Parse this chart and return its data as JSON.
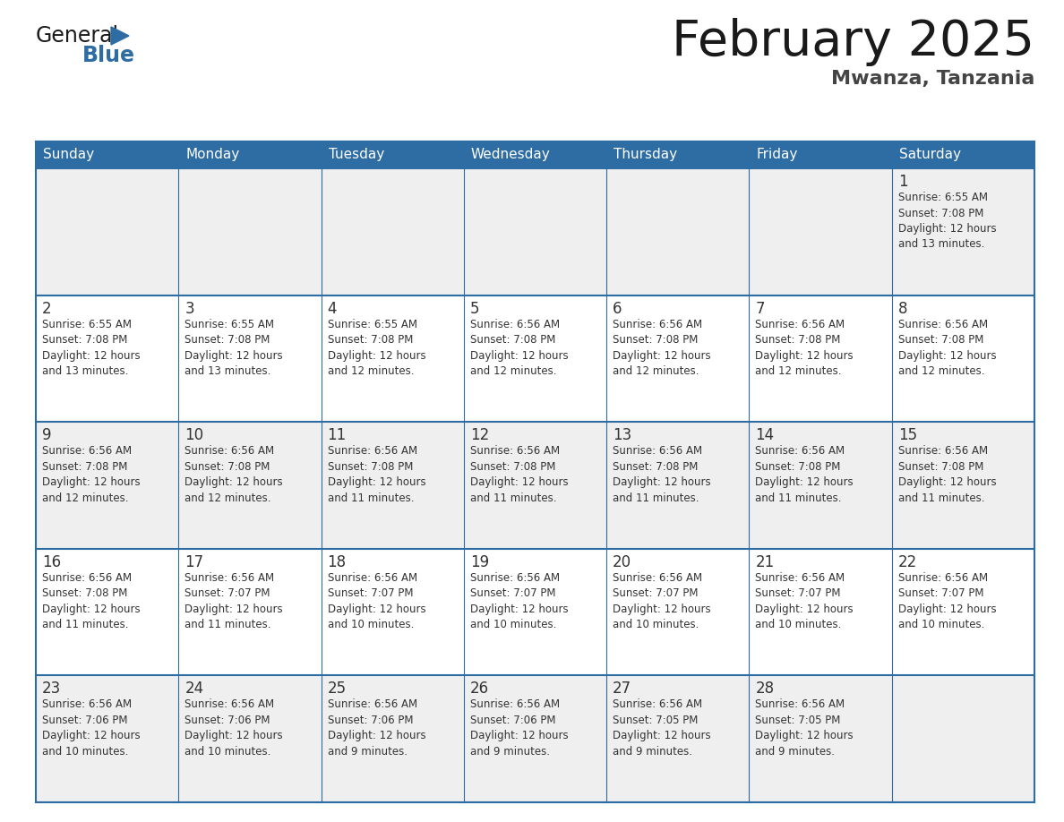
{
  "title": "February 2025",
  "subtitle": "Mwanza, Tanzania",
  "header_bg": "#2E6DA4",
  "header_text_color": "#FFFFFF",
  "cell_bg_odd": "#EFEFEF",
  "cell_bg_even": "#FFFFFF",
  "border_color": "#2E6DA4",
  "text_color": "#333333",
  "days_of_week": [
    "Sunday",
    "Monday",
    "Tuesday",
    "Wednesday",
    "Thursday",
    "Friday",
    "Saturday"
  ],
  "calendar": [
    [
      {
        "day": null,
        "info": null
      },
      {
        "day": null,
        "info": null
      },
      {
        "day": null,
        "info": null
      },
      {
        "day": null,
        "info": null
      },
      {
        "day": null,
        "info": null
      },
      {
        "day": null,
        "info": null
      },
      {
        "day": "1",
        "info": "Sunrise: 6:55 AM\nSunset: 7:08 PM\nDaylight: 12 hours\nand 13 minutes."
      }
    ],
    [
      {
        "day": "2",
        "info": "Sunrise: 6:55 AM\nSunset: 7:08 PM\nDaylight: 12 hours\nand 13 minutes."
      },
      {
        "day": "3",
        "info": "Sunrise: 6:55 AM\nSunset: 7:08 PM\nDaylight: 12 hours\nand 13 minutes."
      },
      {
        "day": "4",
        "info": "Sunrise: 6:55 AM\nSunset: 7:08 PM\nDaylight: 12 hours\nand 12 minutes."
      },
      {
        "day": "5",
        "info": "Sunrise: 6:56 AM\nSunset: 7:08 PM\nDaylight: 12 hours\nand 12 minutes."
      },
      {
        "day": "6",
        "info": "Sunrise: 6:56 AM\nSunset: 7:08 PM\nDaylight: 12 hours\nand 12 minutes."
      },
      {
        "day": "7",
        "info": "Sunrise: 6:56 AM\nSunset: 7:08 PM\nDaylight: 12 hours\nand 12 minutes."
      },
      {
        "day": "8",
        "info": "Sunrise: 6:56 AM\nSunset: 7:08 PM\nDaylight: 12 hours\nand 12 minutes."
      }
    ],
    [
      {
        "day": "9",
        "info": "Sunrise: 6:56 AM\nSunset: 7:08 PM\nDaylight: 12 hours\nand 12 minutes."
      },
      {
        "day": "10",
        "info": "Sunrise: 6:56 AM\nSunset: 7:08 PM\nDaylight: 12 hours\nand 12 minutes."
      },
      {
        "day": "11",
        "info": "Sunrise: 6:56 AM\nSunset: 7:08 PM\nDaylight: 12 hours\nand 11 minutes."
      },
      {
        "day": "12",
        "info": "Sunrise: 6:56 AM\nSunset: 7:08 PM\nDaylight: 12 hours\nand 11 minutes."
      },
      {
        "day": "13",
        "info": "Sunrise: 6:56 AM\nSunset: 7:08 PM\nDaylight: 12 hours\nand 11 minutes."
      },
      {
        "day": "14",
        "info": "Sunrise: 6:56 AM\nSunset: 7:08 PM\nDaylight: 12 hours\nand 11 minutes."
      },
      {
        "day": "15",
        "info": "Sunrise: 6:56 AM\nSunset: 7:08 PM\nDaylight: 12 hours\nand 11 minutes."
      }
    ],
    [
      {
        "day": "16",
        "info": "Sunrise: 6:56 AM\nSunset: 7:08 PM\nDaylight: 12 hours\nand 11 minutes."
      },
      {
        "day": "17",
        "info": "Sunrise: 6:56 AM\nSunset: 7:07 PM\nDaylight: 12 hours\nand 11 minutes."
      },
      {
        "day": "18",
        "info": "Sunrise: 6:56 AM\nSunset: 7:07 PM\nDaylight: 12 hours\nand 10 minutes."
      },
      {
        "day": "19",
        "info": "Sunrise: 6:56 AM\nSunset: 7:07 PM\nDaylight: 12 hours\nand 10 minutes."
      },
      {
        "day": "20",
        "info": "Sunrise: 6:56 AM\nSunset: 7:07 PM\nDaylight: 12 hours\nand 10 minutes."
      },
      {
        "day": "21",
        "info": "Sunrise: 6:56 AM\nSunset: 7:07 PM\nDaylight: 12 hours\nand 10 minutes."
      },
      {
        "day": "22",
        "info": "Sunrise: 6:56 AM\nSunset: 7:07 PM\nDaylight: 12 hours\nand 10 minutes."
      }
    ],
    [
      {
        "day": "23",
        "info": "Sunrise: 6:56 AM\nSunset: 7:06 PM\nDaylight: 12 hours\nand 10 minutes."
      },
      {
        "day": "24",
        "info": "Sunrise: 6:56 AM\nSunset: 7:06 PM\nDaylight: 12 hours\nand 10 minutes."
      },
      {
        "day": "25",
        "info": "Sunrise: 6:56 AM\nSunset: 7:06 PM\nDaylight: 12 hours\nand 9 minutes."
      },
      {
        "day": "26",
        "info": "Sunrise: 6:56 AM\nSunset: 7:06 PM\nDaylight: 12 hours\nand 9 minutes."
      },
      {
        "day": "27",
        "info": "Sunrise: 6:56 AM\nSunset: 7:05 PM\nDaylight: 12 hours\nand 9 minutes."
      },
      {
        "day": "28",
        "info": "Sunrise: 6:56 AM\nSunset: 7:05 PM\nDaylight: 12 hours\nand 9 minutes."
      },
      {
        "day": null,
        "info": null
      }
    ]
  ],
  "logo_text_general": "General",
  "logo_text_blue": "Blue",
  "logo_color_general": "#1a1a1a",
  "logo_color_blue": "#2E6DA4",
  "logo_triangle_color": "#2E6DA4",
  "fig_width": 11.88,
  "fig_height": 9.18,
  "dpi": 100
}
